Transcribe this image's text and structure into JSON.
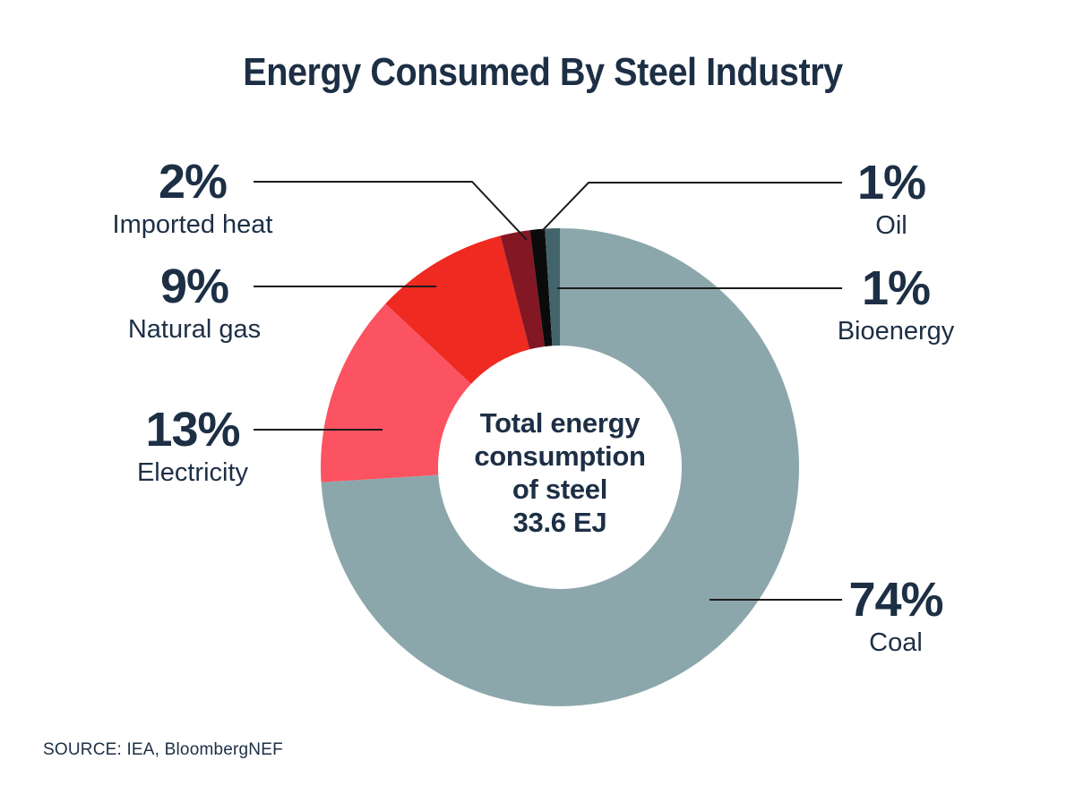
{
  "title": "Energy Consumed By Steel Industry",
  "source": "SOURCE: IEA, BloombergNEF",
  "center_label": {
    "lines": [
      "Total energy",
      "consumption",
      "of steel",
      "33.6 EJ"
    ]
  },
  "chart_data": {
    "type": "pie",
    "variant": "donut",
    "title": "Energy Consumed By Steel Industry",
    "center_text": "Total energy consumption of steel 33.6 EJ",
    "total_value": "33.6 EJ",
    "units": "percent share of total energy consumption",
    "direction": "clockwise",
    "start_angle_deg": 0,
    "legend_position": "callout-labels-with-leader-lines",
    "segments": [
      {
        "label": "Coal",
        "value": 74,
        "display": "74%",
        "color": "#8ca7ab"
      },
      {
        "label": "Electricity",
        "value": 13,
        "display": "13%",
        "color": "#fb5361"
      },
      {
        "label": "Natural gas",
        "value": 9,
        "display": "9%",
        "color": "#ee2a21"
      },
      {
        "label": "Imported heat",
        "value": 2,
        "display": "2%",
        "color": "#831724"
      },
      {
        "label": "Oil",
        "value": 1,
        "display": "1%",
        "color": "#0b0b0b"
      },
      {
        "label": "Bioenergy",
        "value": 1,
        "display": "1%",
        "color": "#44646c"
      }
    ],
    "colors": {
      "text_navy": "#1d2f45",
      "leader_line": "#1b1b1b",
      "background": "#ffffff",
      "donut_hole": "#ffffff"
    }
  }
}
